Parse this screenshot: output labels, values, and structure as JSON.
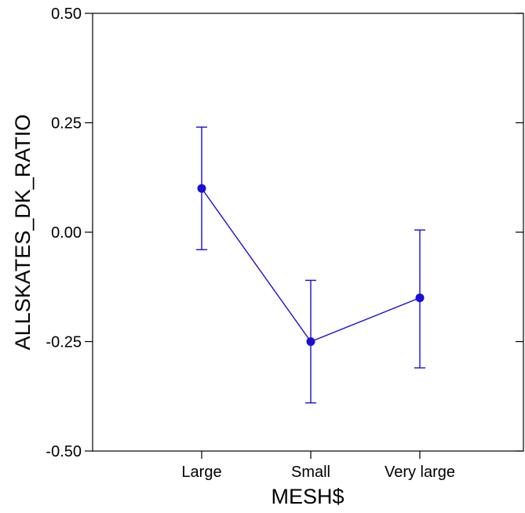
{
  "chart_data": {
    "type": "line",
    "xlabel": "MESH$",
    "ylabel": "ALLSKATES_DK_RATIO",
    "categories": [
      "Large",
      "Small",
      "Very large"
    ],
    "series": [
      {
        "values": [
          0.1,
          -0.25,
          -0.15
        ],
        "error_low": [
          -0.04,
          -0.39,
          -0.31
        ],
        "error_high": [
          0.24,
          -0.11,
          0.005
        ]
      }
    ],
    "ylim": [
      -0.5,
      0.5
    ],
    "yticks": [
      0.5,
      0.25,
      0.0,
      -0.25,
      -0.5
    ],
    "ytick_labels": [
      "0.50",
      "0.25",
      "0.00",
      "-0.25",
      "-0.50"
    ],
    "grid": false,
    "legend": "none",
    "colors": {
      "series": "#1a0fd6",
      "axes": "#000000"
    }
  }
}
